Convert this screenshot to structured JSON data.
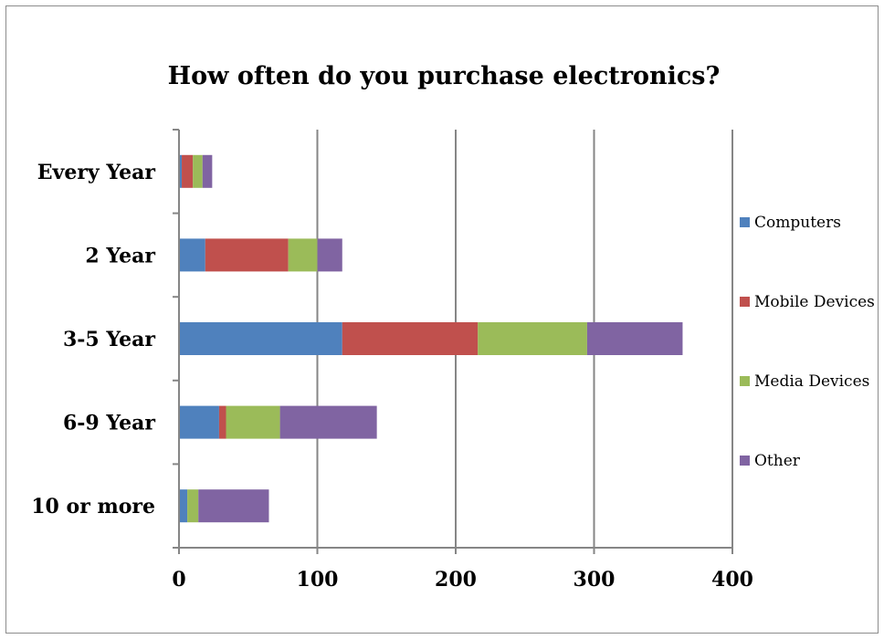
{
  "chart_data": {
    "type": "bar",
    "orientation": "horizontal",
    "stacked": true,
    "title": "How often do you purchase electronics?",
    "xlabel": "",
    "ylabel": "",
    "categories": [
      "Every Year",
      "2 Year",
      "3-5 Year",
      "6-9 Year",
      "10 or more"
    ],
    "series": [
      {
        "name": "Computers",
        "color": "#4f81bd",
        "values": [
          2,
          19,
          118,
          29,
          6
        ]
      },
      {
        "name": "Mobile Devices",
        "color": "#c0504d",
        "values": [
          8,
          60,
          98,
          5,
          0
        ]
      },
      {
        "name": "Media Devices",
        "color": "#9bbb59",
        "values": [
          7,
          21,
          79,
          39,
          8
        ]
      },
      {
        "name": "Other",
        "color": "#8064a2",
        "values": [
          7,
          18,
          69,
          70,
          51
        ]
      }
    ],
    "xlim": [
      0,
      400
    ],
    "xticks": [
      0,
      100,
      200,
      300,
      400
    ],
    "grid": true,
    "legend_position": "right"
  }
}
